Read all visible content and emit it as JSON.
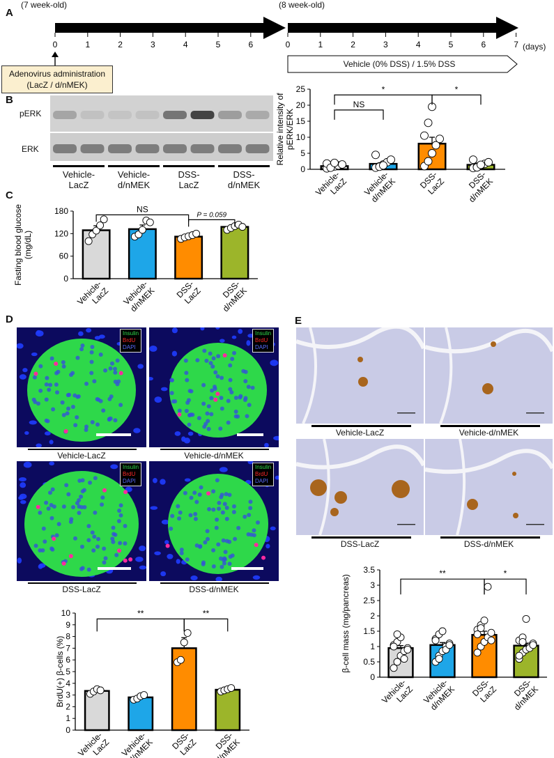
{
  "colors": {
    "vehicle_lacz": "#d9d9d9",
    "vehicle_dnmek": "#1ea6e8",
    "dss_lacz": "#ff8c00",
    "dss_dnmek": "#9cb52a",
    "insulin_green": "#2ed84a",
    "dapi_blue": "#1f3cff",
    "ihc_bg": "#c9cbe6",
    "ihc_islet": "#a8651d"
  },
  "panelA": {
    "label": "A",
    "age_start": "(7 week-old)",
    "age_mid": "(8 week-old)",
    "ticks_week1": [
      "0",
      "1",
      "2",
      "3",
      "4",
      "5",
      "6"
    ],
    "ticks_week2": [
      "0",
      "1",
      "2",
      "3",
      "4",
      "5",
      "6",
      "7"
    ],
    "days_unit": "(days)",
    "adenovirus_line1": "Adenovirus administration",
    "adenovirus_line2": "(LacZ / d/nMEK)",
    "treatment": "Vehicle (0% DSS) / 1.5% DSS"
  },
  "panelB": {
    "label": "B",
    "blot_rows": [
      "pERK",
      "ERK"
    ],
    "groups": [
      "Vehicle-\nLacZ",
      "Vehicle-\nd/nMEK",
      "DSS-\nLacZ",
      "DSS-\nd/nMEK"
    ]
  },
  "panelC": {
    "label": "C"
  },
  "panelD": {
    "label": "D",
    "legend": [
      "Insulin",
      "BrdU",
      "DAPI"
    ],
    "captions": [
      "Vehicle-LacZ",
      "Vehicle-d/nMEK",
      "DSS-LacZ",
      "DSS-d/nMEK"
    ]
  },
  "panelE": {
    "label": "E",
    "captions": [
      "Vehicle-LacZ",
      "Vehicle-d/nMEK",
      "DSS-LacZ",
      "DSS-d/nMEK"
    ]
  },
  "chart_data": [
    {
      "id": "B_quant",
      "type": "bar",
      "categories": [
        "Vehicle-\nLacZ",
        "Vehicle-\nd/nMEK",
        "DSS-\nLacZ",
        "DSS-\nd/nMEK"
      ],
      "values": [
        1.0,
        1.7,
        8.0,
        1.4
      ],
      "errors": [
        0.4,
        0.6,
        2.0,
        0.3
      ],
      "points": [
        [
          0.3,
          0.6,
          0.9,
          1.2,
          1.5,
          1.8,
          0.5,
          2.0
        ],
        [
          0.5,
          0.9,
          1.5,
          2.2,
          3.0,
          4.5,
          0.8,
          1.2
        ],
        [
          1.0,
          2.5,
          5.0,
          7.5,
          9.5,
          10.5,
          14.5,
          19.5
        ],
        [
          0.4,
          0.8,
          1.2,
          1.7,
          2.2,
          3.0,
          0.6,
          1.4
        ]
      ],
      "ylabel": "Relative intensity of\npERK/ERK",
      "ylim": [
        0,
        25
      ],
      "yticks": [
        0,
        5,
        10,
        15,
        20,
        25
      ],
      "significance": [
        {
          "from": 0,
          "to": 2,
          "label": "*",
          "level": 23.2
        },
        {
          "from": 2,
          "to": 3,
          "label": "*",
          "level": 23.2
        },
        {
          "from": 0,
          "to": 1,
          "label": "NS",
          "level": 18.5
        }
      ]
    },
    {
      "id": "C_glucose",
      "type": "bar",
      "categories": [
        "Vehicle-\nLacZ",
        "Vehicle-\nd/nMEK",
        "DSS-\nLacZ",
        "DSS-\nd/nMEK"
      ],
      "values": [
        129,
        132,
        112,
        138
      ],
      "errors": [
        12,
        11,
        5,
        6
      ],
      "points": [
        [
          100,
          118,
          128,
          142,
          158
        ],
        [
          112,
          118,
          130,
          155,
          150
        ],
        [
          106,
          110,
          113,
          116,
          120
        ],
        [
          130,
          135,
          140,
          144,
          138
        ]
      ],
      "ylabel": "Fasting blood glucose\n(mg/dL)",
      "ylim": [
        0,
        180
      ],
      "yticks": [
        0,
        60,
        120,
        180
      ],
      "significance": [
        {
          "from": 0,
          "to": 2,
          "label": "NS",
          "level": 170
        },
        {
          "from": 2,
          "to": 3,
          "label": "P = 0.059",
          "level": 157
        }
      ]
    },
    {
      "id": "D_brdu",
      "type": "bar",
      "categories": [
        "Vehicle-\nLacZ",
        "Vehicle-\nd/nMEK",
        "DSS-\nLacZ",
        "DSS-\nd/nMEK"
      ],
      "values": [
        3.35,
        2.8,
        7.0,
        3.45
      ],
      "errors": [
        0.15,
        0.15,
        0.9,
        0.1
      ],
      "points": [
        [
          3.1,
          3.3,
          3.5,
          3.4
        ],
        [
          2.6,
          2.7,
          2.9,
          3.0
        ],
        [
          5.8,
          6.0,
          7.5,
          8.3
        ],
        [
          3.3,
          3.4,
          3.5,
          3.6
        ]
      ],
      "ylabel": "BrdU(+) β-cells (%)",
      "ylim": [
        0,
        10
      ],
      "yticks": [
        0,
        1,
        2,
        3,
        4,
        5,
        6,
        7,
        8,
        9,
        10
      ],
      "significance": [
        {
          "from": 0,
          "to": 2,
          "label": "**",
          "level": 9.5
        },
        {
          "from": 2,
          "to": 3,
          "label": "**",
          "level": 9.5
        }
      ]
    },
    {
      "id": "E_mass",
      "type": "bar",
      "categories": [
        "Vehicle-\nLacZ",
        "Vehicle-\nd/nMEK",
        "DSS-\nLacZ",
        "DSS-\nd/nMEK"
      ],
      "values": [
        0.95,
        1.05,
        1.38,
        1.03
      ],
      "errors": [
        0.08,
        0.08,
        0.12,
        0.08
      ],
      "points": [
        [
          0.3,
          0.5,
          0.7,
          0.85,
          0.95,
          1.05,
          1.15,
          1.3,
          0.6,
          0.9,
          1.0,
          1.4
        ],
        [
          0.5,
          0.7,
          0.85,
          1.0,
          1.1,
          1.25,
          1.4,
          1.5,
          0.9,
          1.05,
          1.2,
          0.6
        ],
        [
          0.8,
          1.0,
          1.15,
          1.3,
          1.45,
          1.55,
          1.7,
          1.85,
          2.95,
          1.2,
          1.4,
          1.6
        ],
        [
          0.6,
          0.8,
          0.9,
          1.0,
          1.1,
          1.2,
          1.3,
          1.9,
          0.95,
          1.05,
          0.7,
          1.15
        ]
      ],
      "ylabel": "β-cell mass (mg/pancreas)",
      "ylim": [
        0,
        3.5
      ],
      "yticks": [
        0,
        0.5,
        1,
        1.5,
        2,
        2.5,
        3,
        3.5
      ],
      "significance": [
        {
          "from": 0,
          "to": 2,
          "label": "**",
          "level": 3.2
        },
        {
          "from": 2,
          "to": 3,
          "label": "*",
          "level": 3.2
        }
      ]
    }
  ]
}
